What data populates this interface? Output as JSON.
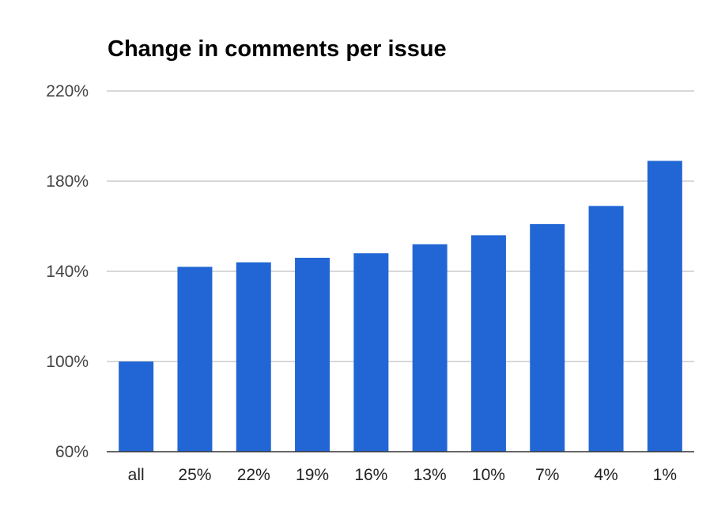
{
  "chart_data": {
    "type": "bar",
    "title": "Change in comments per issue",
    "xlabel": "",
    "ylabel": "",
    "categories": [
      "all",
      "25%",
      "22%",
      "19%",
      "16%",
      "13%",
      "10%",
      "7%",
      "4%",
      "1%"
    ],
    "values": [
      100,
      142,
      144,
      146,
      148,
      152,
      156,
      161,
      169,
      189
    ],
    "ylim": [
      60,
      220
    ],
    "yticks": [
      60,
      100,
      140,
      180,
      220
    ],
    "ytick_labels": [
      "60%",
      "100%",
      "140%",
      "180%",
      "220%"
    ],
    "grid": true,
    "legend": "none",
    "bar_color": "#2166d4"
  }
}
